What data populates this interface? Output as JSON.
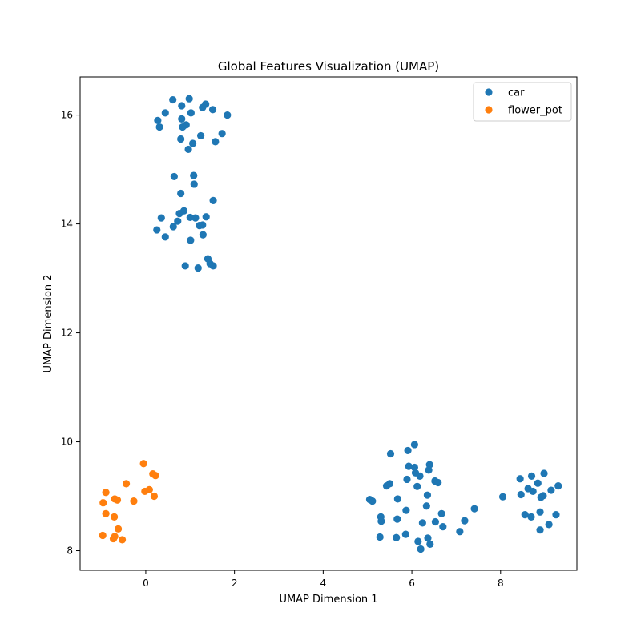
{
  "chart_data": {
    "type": "scatter",
    "title": "Global Features Visualization (UMAP)",
    "xlabel": "UMAP Dimension 1",
    "ylabel": "UMAP Dimension 2",
    "xlim": [
      -1.48,
      9.72
    ],
    "ylim": [
      7.64,
      16.7
    ],
    "xticks": [
      0,
      2,
      4,
      6,
      8
    ],
    "yticks": [
      8,
      10,
      12,
      14,
      16
    ],
    "xtick_labels": [
      "0",
      "2",
      "4",
      "6",
      "8"
    ],
    "ytick_labels": [
      "8",
      "10",
      "12",
      "14",
      "16"
    ],
    "grid": false,
    "legend_position": "top-right",
    "series": [
      {
        "name": "car",
        "color": "#1f77b4",
        "points": [
          [
            0.61,
            16.28
          ],
          [
            0.98,
            16.3
          ],
          [
            1.35,
            16.2
          ],
          [
            1.28,
            16.14
          ],
          [
            1.51,
            16.1
          ],
          [
            0.81,
            16.17
          ],
          [
            0.44,
            16.04
          ],
          [
            1.02,
            16.04
          ],
          [
            1.84,
            16.0
          ],
          [
            0.27,
            15.9
          ],
          [
            0.81,
            15.93
          ],
          [
            0.31,
            15.78
          ],
          [
            0.91,
            15.82
          ],
          [
            0.83,
            15.78
          ],
          [
            1.72,
            15.66
          ],
          [
            1.24,
            15.62
          ],
          [
            0.79,
            15.56
          ],
          [
            1.57,
            15.51
          ],
          [
            1.06,
            15.48
          ],
          [
            0.96,
            15.37
          ],
          [
            0.64,
            14.87
          ],
          [
            1.08,
            14.89
          ],
          [
            1.09,
            14.73
          ],
          [
            0.79,
            14.56
          ],
          [
            1.52,
            14.43
          ],
          [
            0.86,
            14.24
          ],
          [
            0.76,
            14.19
          ],
          [
            1.0,
            14.12
          ],
          [
            1.12,
            14.11
          ],
          [
            1.36,
            14.13
          ],
          [
            0.72,
            14.05
          ],
          [
            0.35,
            14.11
          ],
          [
            1.21,
            13.97
          ],
          [
            1.28,
            13.98
          ],
          [
            0.62,
            13.95
          ],
          [
            0.25,
            13.89
          ],
          [
            0.44,
            13.76
          ],
          [
            1.29,
            13.8
          ],
          [
            1.01,
            13.7
          ],
          [
            1.4,
            13.36
          ],
          [
            1.45,
            13.27
          ],
          [
            0.89,
            13.23
          ],
          [
            1.52,
            13.23
          ],
          [
            1.18,
            13.19
          ],
          [
            6.06,
            9.95
          ],
          [
            5.91,
            9.84
          ],
          [
            5.52,
            9.78
          ],
          [
            5.93,
            9.55
          ],
          [
            6.06,
            9.53
          ],
          [
            6.4,
            9.58
          ],
          [
            6.08,
            9.43
          ],
          [
            6.38,
            9.48
          ],
          [
            6.18,
            9.37
          ],
          [
            5.89,
            9.31
          ],
          [
            6.52,
            9.28
          ],
          [
            6.59,
            9.25
          ],
          [
            5.5,
            9.23
          ],
          [
            5.43,
            9.19
          ],
          [
            6.12,
            9.18
          ],
          [
            6.35,
            9.02
          ],
          [
            5.05,
            8.94
          ],
          [
            5.11,
            8.91
          ],
          [
            5.68,
            8.95
          ],
          [
            6.33,
            8.82
          ],
          [
            5.87,
            8.74
          ],
          [
            6.67,
            8.68
          ],
          [
            5.3,
            8.62
          ],
          [
            5.31,
            8.54
          ],
          [
            5.67,
            8.58
          ],
          [
            6.24,
            8.51
          ],
          [
            6.53,
            8.53
          ],
          [
            6.7,
            8.44
          ],
          [
            7.08,
            8.35
          ],
          [
            5.86,
            8.3
          ],
          [
            5.28,
            8.25
          ],
          [
            5.65,
            8.24
          ],
          [
            6.36,
            8.23
          ],
          [
            6.14,
            8.17
          ],
          [
            6.41,
            8.12
          ],
          [
            6.2,
            8.03
          ],
          [
            7.41,
            8.77
          ],
          [
            7.19,
            8.55
          ],
          [
            8.05,
            8.99
          ],
          [
            8.44,
            9.32
          ],
          [
            8.7,
            9.37
          ],
          [
            8.98,
            9.42
          ],
          [
            8.84,
            9.24
          ],
          [
            8.62,
            9.14
          ],
          [
            8.73,
            9.09
          ],
          [
            9.3,
            9.19
          ],
          [
            9.14,
            9.11
          ],
          [
            8.46,
            9.03
          ],
          [
            8.96,
            9.01
          ],
          [
            8.91,
            8.98
          ],
          [
            8.55,
            8.66
          ],
          [
            8.89,
            8.71
          ],
          [
            8.69,
            8.62
          ],
          [
            9.25,
            8.66
          ],
          [
            9.09,
            8.48
          ],
          [
            8.89,
            8.38
          ]
        ]
      },
      {
        "name": "flower_pot",
        "color": "#ff7f0e",
        "points": [
          [
            -0.05,
            9.6
          ],
          [
            0.16,
            9.41
          ],
          [
            0.22,
            9.38
          ],
          [
            -0.44,
            9.23
          ],
          [
            0.08,
            9.12
          ],
          [
            -0.02,
            9.09
          ],
          [
            -0.9,
            9.07
          ],
          [
            0.19,
            9.0
          ],
          [
            -0.27,
            8.91
          ],
          [
            -0.7,
            8.95
          ],
          [
            -0.64,
            8.93
          ],
          [
            -0.96,
            8.88
          ],
          [
            -0.9,
            8.68
          ],
          [
            -0.71,
            8.62
          ],
          [
            -0.62,
            8.4
          ],
          [
            -0.97,
            8.28
          ],
          [
            -0.7,
            8.26
          ],
          [
            -0.73,
            8.22
          ],
          [
            -0.53,
            8.2
          ]
        ]
      }
    ]
  }
}
